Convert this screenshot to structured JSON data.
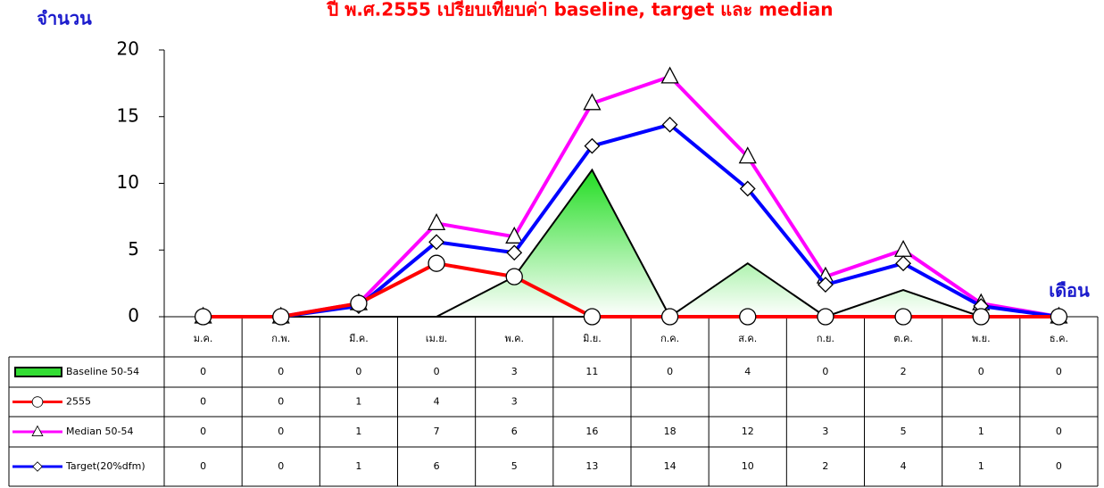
{
  "chart_data": {
    "type": "line",
    "title": "ปี พ.ศ.2555 เปรียบเทียบค่า baseline, target และ median",
    "y_label": "จำนวน",
    "x_label": "เดือน",
    "categories": [
      "ม.ค.",
      "ก.พ.",
      "มี.ค.",
      "เม.ย.",
      "พ.ค.",
      "มิ.ย.",
      "ก.ค.",
      "ส.ค.",
      "ก.ย.",
      "ต.ค.",
      "พ.ย.",
      "ธ.ค."
    ],
    "ylim": [
      0,
      20
    ],
    "yticks": [
      0,
      5,
      10,
      15,
      20
    ],
    "series": [
      {
        "name": "Baseline 50-54",
        "type": "area",
        "color": "#33dd33",
        "values": [
          0,
          0,
          0,
          0,
          3,
          11,
          0,
          4,
          0,
          2,
          0,
          0
        ]
      },
      {
        "name": "2555",
        "type": "line",
        "marker": "circle",
        "color": "#ff0000",
        "values": [
          0,
          0,
          1,
          4,
          3,
          0,
          0,
          0,
          0,
          0,
          0,
          0
        ],
        "value_labels": [
          "0",
          "0",
          "1",
          "4",
          "3",
          null,
          null,
          null,
          null,
          null,
          null,
          null
        ]
      },
      {
        "name": "Median 50-54",
        "type": "line",
        "marker": "triangle",
        "color": "#ff00ff",
        "values": [
          0,
          0,
          1,
          7,
          6,
          16,
          18,
          12,
          3,
          5,
          1,
          0
        ]
      },
      {
        "name": "Target(20%dfm)",
        "type": "line",
        "marker": "diamond",
        "color": "#0000ff",
        "values": [
          0,
          0,
          0.8,
          5.6,
          4.8,
          12.8,
          14.4,
          9.6,
          2.4,
          4,
          0.8,
          0
        ],
        "value_labels": [
          "0",
          "0",
          "1",
          "6",
          "5",
          "13",
          "14",
          "10",
          "2",
          "4",
          "1",
          "0"
        ]
      }
    ]
  }
}
